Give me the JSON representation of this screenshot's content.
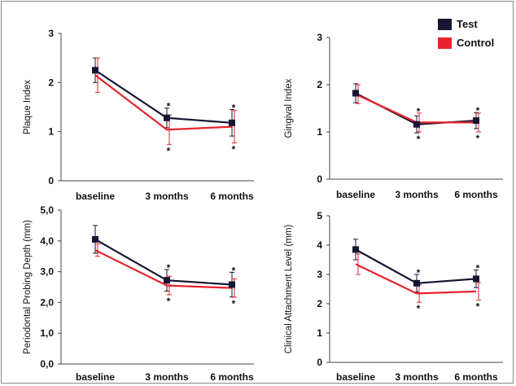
{
  "chart_data": [
    {
      "type": "line",
      "ylabel": "Plaque Index",
      "ylim": [
        0,
        3
      ],
      "yticks": [
        "0",
        "1",
        "2",
        "3"
      ],
      "categories": [
        "baseline",
        "3 months",
        "6 months"
      ],
      "series": [
        {
          "name": "Test",
          "color": "#141633",
          "values": [
            2.25,
            1.28,
            1.18
          ],
          "err": [
            0.25,
            0.2,
            0.27
          ],
          "marker": true
        },
        {
          "name": "Control",
          "color": "#e8232c",
          "values": [
            2.15,
            1.04,
            1.1
          ],
          "err": [
            0.35,
            0.3,
            0.33
          ],
          "marker": false
        }
      ],
      "significance": [
        "",
        "*",
        "*"
      ]
    },
    {
      "type": "line",
      "ylabel": "Gingival Index",
      "ylim": [
        0,
        3
      ],
      "yticks": [
        "0",
        "1",
        "2",
        "3"
      ],
      "categories": [
        "baseline",
        "3 months",
        "6 months"
      ],
      "series": [
        {
          "name": "Test",
          "color": "#141633",
          "values": [
            1.82,
            1.16,
            1.24
          ],
          "err": [
            0.2,
            0.18,
            0.17
          ],
          "marker": true
        },
        {
          "name": "Control",
          "color": "#e8232c",
          "values": [
            1.8,
            1.2,
            1.2
          ],
          "err": [
            0.2,
            0.2,
            0.2
          ],
          "marker": false
        }
      ],
      "significance": [
        "",
        "*",
        "*"
      ]
    },
    {
      "type": "line",
      "ylabel": "Periodontal Probing Depth (mm)",
      "ylim": [
        0,
        5
      ],
      "yticks": [
        "0,0",
        "1,0",
        "2,0",
        "3,0",
        "4,0",
        "5,0"
      ],
      "categories": [
        "baseline",
        "3 months",
        "6 months"
      ],
      "series": [
        {
          "name": "Test",
          "color": "#141633",
          "values": [
            4.05,
            2.72,
            2.58
          ],
          "err": [
            0.45,
            0.35,
            0.4
          ],
          "marker": true
        },
        {
          "name": "Control",
          "color": "#e8232c",
          "values": [
            3.7,
            2.55,
            2.47
          ],
          "err": [
            0.2,
            0.3,
            0.3
          ],
          "marker": false
        }
      ],
      "significance": [
        "",
        "*",
        "*"
      ]
    },
    {
      "type": "line",
      "ylabel": "Clinical Attachment Level (mm)",
      "ylim": [
        0,
        5
      ],
      "yticks": [
        "0",
        "1",
        "2",
        "3",
        "4",
        "5"
      ],
      "categories": [
        "baseline",
        "3 months",
        "6 months"
      ],
      "series": [
        {
          "name": "Test",
          "color": "#141633",
          "values": [
            3.85,
            2.7,
            2.85
          ],
          "err": [
            0.35,
            0.3,
            0.3
          ],
          "marker": true
        },
        {
          "name": "Control",
          "color": "#e8232c",
          "values": [
            3.35,
            2.35,
            2.42
          ],
          "err": [
            0.35,
            0.3,
            0.3
          ],
          "marker": false
        }
      ],
      "significance": [
        "",
        "*",
        "*"
      ]
    }
  ],
  "legend": [
    {
      "label": "Test",
      "color": "#141633"
    },
    {
      "label": "Control",
      "color": "#e8232c"
    }
  ]
}
